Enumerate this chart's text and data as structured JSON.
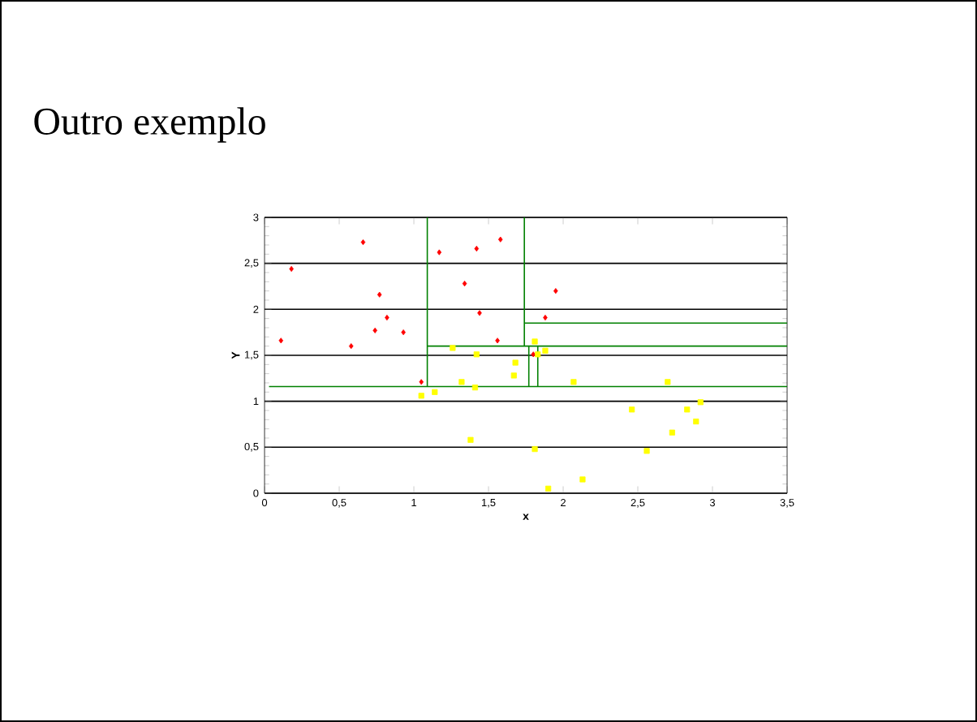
{
  "chart_data": {
    "type": "scatter",
    "title": "Outro exemplo",
    "xlabel": "x",
    "ylabel": "Y",
    "xlim": [
      0,
      3.5
    ],
    "ylim": [
      0,
      3
    ],
    "xticks": [
      0,
      {
        "value": 0.5,
        "label": "0,5"
      },
      1,
      {
        "value": 1.5,
        "label": "1,5"
      },
      2,
      {
        "value": 2.5,
        "label": "2,5"
      },
      3,
      {
        "value": 3.5,
        "label": "3,5"
      }
    ],
    "yticks": [
      0,
      {
        "value": 0.5,
        "label": "0,5"
      },
      1,
      {
        "value": 1.5,
        "label": "1,5"
      },
      2,
      {
        "value": 2.5,
        "label": "2,5"
      },
      3
    ],
    "grid": "y",
    "series": [
      {
        "color": "#ff0000",
        "marker": "diamond",
        "x": [
          0.11,
          0.18,
          0.58,
          0.66,
          0.74,
          0.77,
          0.82,
          0.93,
          1.05,
          1.17,
          1.34,
          1.42,
          1.44,
          1.56,
          1.58,
          1.8,
          1.88,
          1.95
        ],
        "values": [
          1.66,
          2.44,
          1.6,
          2.73,
          1.77,
          2.16,
          1.91,
          1.75,
          1.21,
          2.62,
          2.28,
          2.66,
          1.96,
          1.66,
          2.76,
          1.51,
          1.91,
          2.2
        ]
      },
      {
        "color": "#ffff00",
        "marker": "square",
        "x": [
          1.05,
          1.14,
          1.26,
          1.32,
          1.42,
          1.41,
          1.38,
          1.67,
          1.68,
          1.81,
          1.81,
          1.83,
          1.88,
          1.9,
          2.07,
          2.13,
          2.46,
          2.56,
          2.7,
          2.73,
          2.83,
          2.89,
          2.92
        ],
        "values": [
          1.06,
          1.1,
          1.58,
          1.21,
          1.51,
          1.15,
          0.58,
          1.28,
          1.42,
          1.65,
          0.48,
          1.51,
          1.55,
          0.05,
          1.21,
          0.15,
          0.91,
          0.46,
          1.21,
          0.66,
          0.91,
          0.78,
          0.99
        ]
      },
      {
        "type": "line",
        "color": "#008000",
        "x": [
          0.03,
          3.5
        ],
        "values": [
          1.16,
          1.16
        ]
      },
      {
        "type": "line",
        "color": "#008000",
        "x": [
          1.09,
          1.09
        ],
        "values": [
          1.16,
          3
        ]
      },
      {
        "type": "line",
        "color": "#008000",
        "x": [
          1.09,
          3.5
        ],
        "values": [
          1.6,
          1.6
        ]
      },
      {
        "type": "line",
        "color": "#008000",
        "x": [
          1.74,
          1.74
        ],
        "values": [
          1.6,
          3
        ]
      },
      {
        "type": "line",
        "color": "#008000",
        "x": [
          1.74,
          3.5
        ],
        "values": [
          1.85,
          1.85
        ]
      },
      {
        "type": "line",
        "color": "#008000",
        "x": [
          1.77,
          1.77
        ],
        "values": [
          1.16,
          1.6
        ]
      },
      {
        "type": "line",
        "color": "#008000",
        "x": [
          1.83,
          1.83
        ],
        "values": [
          1.16,
          1.6
        ]
      }
    ]
  }
}
